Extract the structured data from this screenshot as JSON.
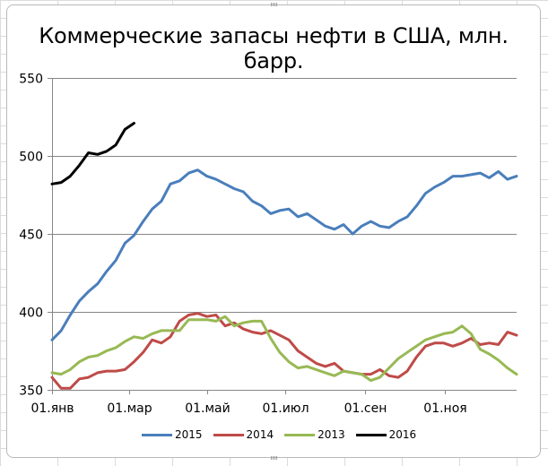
{
  "chart_data": {
    "type": "line",
    "title": "Коммерческие запасы нефти в США, млн. барр.",
    "xlabel": "",
    "ylabel": "",
    "ylim": [
      350,
      550
    ],
    "yticks": [
      350,
      400,
      450,
      500,
      550
    ],
    "xtick_labels": [
      "01.янв",
      "01.мар",
      "01.май",
      "01.июл",
      "01.сен",
      "01.ноя"
    ],
    "xtick_week_index": [
      0,
      8.5,
      17,
      25.6,
      34.4,
      43.1
    ],
    "grid": "horizontal",
    "legend_position": "bottom",
    "x_unit": "week of year (0-51)",
    "series": [
      {
        "name": "2015",
        "color": "#4a7ebb",
        "values": [
          382,
          388,
          398,
          407,
          413,
          418,
          426,
          433,
          444,
          449,
          458,
          466,
          471,
          482,
          484,
          489,
          491,
          487,
          485,
          482,
          479,
          477,
          471,
          468,
          463,
          465,
          466,
          461,
          463,
          459,
          455,
          453,
          456,
          450,
          455,
          458,
          455,
          454,
          458,
          461,
          468,
          476,
          480,
          483,
          487,
          487,
          488,
          489,
          486,
          490,
          485,
          487
        ]
      },
      {
        "name": "2014",
        "color": "#be4b48",
        "values": [
          358,
          351,
          351,
          357,
          358,
          361,
          362,
          362,
          363,
          368,
          374,
          382,
          380,
          384,
          394,
          398,
          399,
          397,
          398,
          391,
          393,
          389,
          387,
          386,
          388,
          385,
          382,
          375,
          371,
          367,
          365,
          367,
          362,
          361,
          360,
          360,
          363,
          359,
          358,
          362,
          371,
          378,
          380,
          380,
          378,
          380,
          383,
          379,
          380,
          379,
          387,
          385
        ]
      },
      {
        "name": "2013",
        "color": "#98b954",
        "values": [
          361,
          360,
          363,
          368,
          371,
          372,
          375,
          377,
          381,
          384,
          383,
          386,
          388,
          388,
          388,
          395,
          395,
          395,
          394,
          397,
          391,
          393,
          394,
          394,
          383,
          374,
          368,
          364,
          365,
          363,
          361,
          359,
          362,
          361,
          360,
          356,
          358,
          364,
          370,
          374,
          378,
          382,
          384,
          386,
          387,
          391,
          386,
          376,
          373,
          369,
          364,
          360
        ]
      },
      {
        "name": "2016",
        "color": "#000000",
        "values": [
          482,
          483,
          487,
          494,
          502,
          501,
          503,
          507,
          517,
          521
        ]
      }
    ]
  },
  "legend": {
    "items": [
      {
        "label": "2015",
        "color": "#4a7ebb"
      },
      {
        "label": "2014",
        "color": "#be4b48"
      },
      {
        "label": "2013",
        "color": "#98b954"
      },
      {
        "label": "2016",
        "color": "#000000"
      }
    ]
  }
}
